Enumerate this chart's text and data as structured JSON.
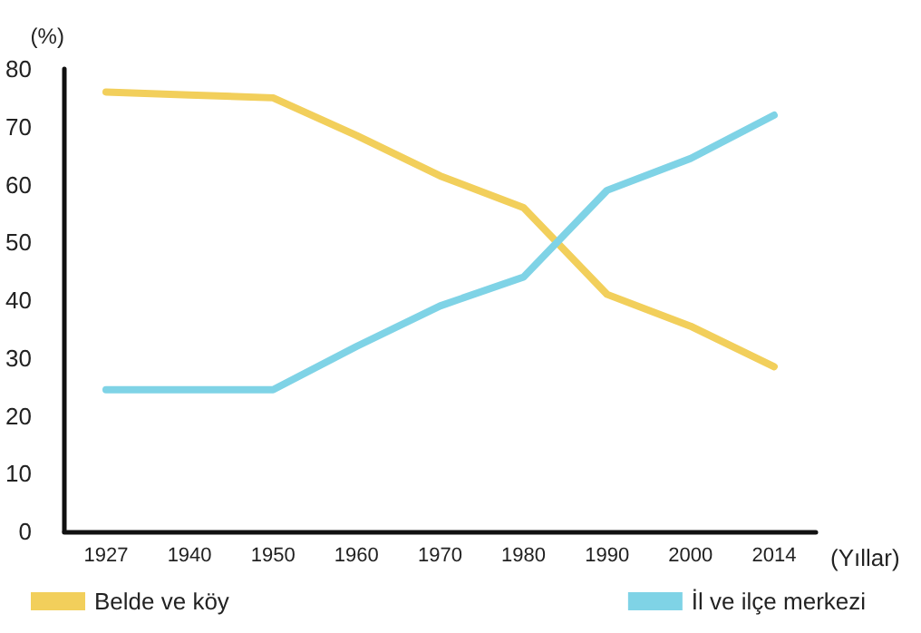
{
  "chart_data": {
    "type": "line",
    "xlabel": "(Yıllar)",
    "ylabel": "(%)",
    "categories": [
      "1927",
      "1940",
      "1950",
      "1960",
      "1970",
      "1980",
      "1990",
      "2000",
      "2014"
    ],
    "series": [
      {
        "name": "Belde ve köy",
        "color": "#f2cf5b",
        "values": [
          76,
          75.5,
          75,
          68.5,
          61.5,
          56,
          41,
          35.5,
          28.5
        ]
      },
      {
        "name": "İl ve ilçe merkezi",
        "color": "#7fd3e6",
        "values": [
          24.5,
          24.5,
          24.5,
          32,
          39,
          44,
          59,
          64.5,
          72
        ]
      }
    ],
    "ylim": [
      0,
      80
    ],
    "yticks": [
      0,
      10,
      20,
      30,
      40,
      50,
      60,
      70,
      80
    ],
    "grid": false,
    "legend": "bottom",
    "marker": "none"
  }
}
